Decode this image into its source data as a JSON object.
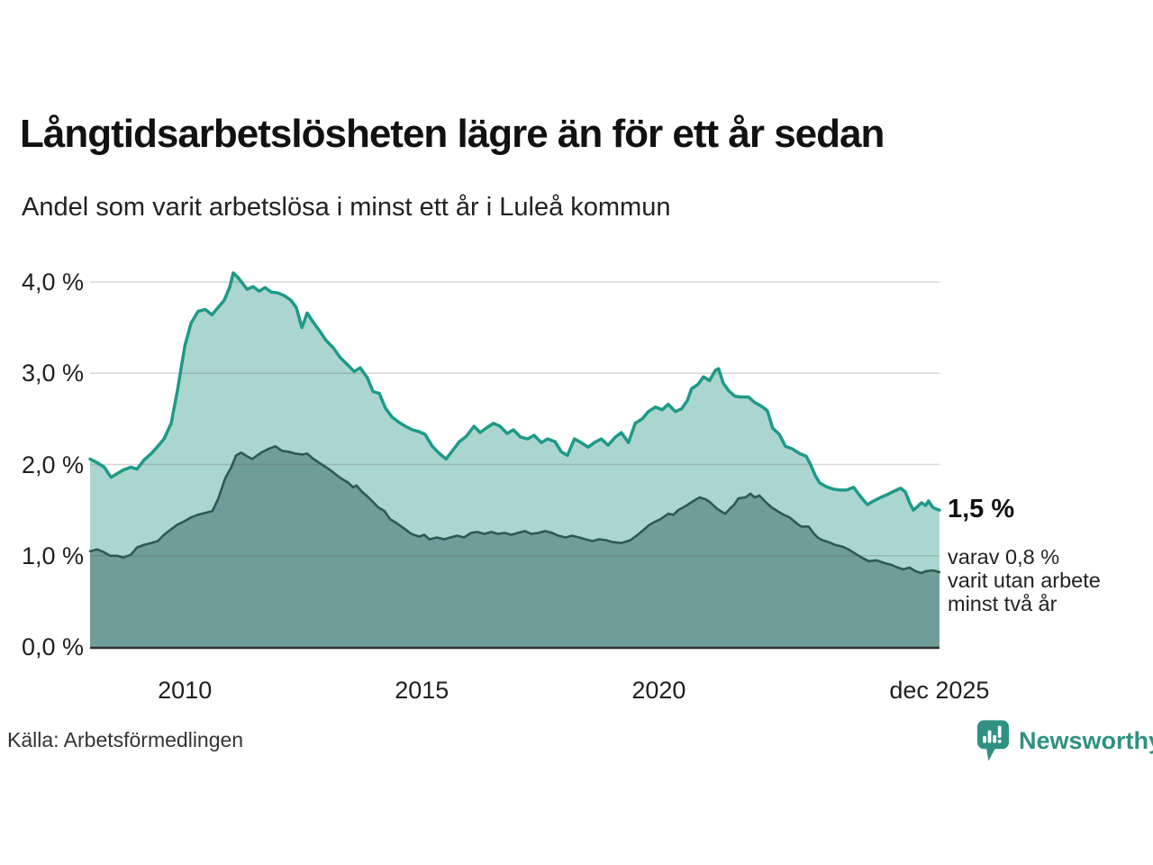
{
  "header": {
    "title": "Långtidsarbetslösheten lägre än för ett år sedan",
    "subtitle": "Andel som varit arbetslösa i minst ett år i Luleå kommun"
  },
  "footer": {
    "source": "Källa: Arbetsförmedlingen",
    "brand": "Newsworthy"
  },
  "colors": {
    "series1_line": "#1d9a87",
    "series1_fill": "#abd6cf",
    "series2_line": "#2d5a52",
    "series2_fill": "#6f9d99",
    "gridline": "#d7d7d7",
    "axis_line": "#2f2f2f",
    "brand_teal": "#2f9181",
    "text": "#1a1a1a"
  },
  "chart_data": {
    "type": "area",
    "title": "Långtidsarbetslösheten lägre än för ett år sedan",
    "subtitle": "Andel som varit arbetslösa i minst ett år i Luleå kommun",
    "legend": "none",
    "grid": "horizontal",
    "unit": "%",
    "x_axis": {
      "domain": [
        2008.0,
        2025.92
      ],
      "ticks": [
        {
          "label": "2010",
          "year": 2010
        },
        {
          "label": "2015",
          "year": 2015
        },
        {
          "label": "2020",
          "year": 2020
        },
        {
          "label": "dec 2025",
          "year": 2025.92
        }
      ]
    },
    "y_axis": {
      "range": [
        0,
        4.35
      ],
      "gridlines": [
        1,
        2,
        3,
        4
      ],
      "ticks": [
        {
          "label": "0,0 %",
          "value": 0
        },
        {
          "label": "1,0 %",
          "value": 1
        },
        {
          "label": "2,0 %",
          "value": 2
        },
        {
          "label": "3,0 %",
          "value": 3
        },
        {
          "label": "4,0 %",
          "value": 4
        }
      ]
    },
    "annotation": {
      "value": "1,5 %",
      "note_lines": [
        "varav 0,8 %",
        "varit utan arbete",
        "minst två år"
      ]
    },
    "series": [
      {
        "name": "Andel arbetslösa minst ett år",
        "latest_value": 1.5,
        "line_color": "#1d9a87",
        "fill_color": "#abd6cf",
        "points": [
          [
            2008.0,
            2.06
          ],
          [
            2008.15,
            2.02
          ],
          [
            2008.3,
            1.97
          ],
          [
            2008.44,
            1.86
          ],
          [
            2008.57,
            1.9
          ],
          [
            2008.7,
            1.94
          ],
          [
            2008.86,
            1.97
          ],
          [
            2008.99,
            1.95
          ],
          [
            2009.14,
            2.05
          ],
          [
            2009.29,
            2.12
          ],
          [
            2009.43,
            2.2
          ],
          [
            2009.56,
            2.28
          ],
          [
            2009.71,
            2.45
          ],
          [
            2009.84,
            2.8
          ],
          [
            2010.0,
            3.3
          ],
          [
            2010.13,
            3.55
          ],
          [
            2010.28,
            3.68
          ],
          [
            2010.43,
            3.7
          ],
          [
            2010.57,
            3.64
          ],
          [
            2010.7,
            3.72
          ],
          [
            2010.83,
            3.8
          ],
          [
            2010.95,
            3.95
          ],
          [
            2011.02,
            4.1
          ],
          [
            2011.12,
            4.05
          ],
          [
            2011.21,
            3.99
          ],
          [
            2011.31,
            3.92
          ],
          [
            2011.44,
            3.95
          ],
          [
            2011.57,
            3.9
          ],
          [
            2011.69,
            3.94
          ],
          [
            2011.82,
            3.89
          ],
          [
            2011.97,
            3.88
          ],
          [
            2012.1,
            3.85
          ],
          [
            2012.24,
            3.8
          ],
          [
            2012.35,
            3.72
          ],
          [
            2012.47,
            3.5
          ],
          [
            2012.58,
            3.66
          ],
          [
            2012.71,
            3.56
          ],
          [
            2012.85,
            3.46
          ],
          [
            2012.98,
            3.36
          ],
          [
            2013.13,
            3.28
          ],
          [
            2013.28,
            3.17
          ],
          [
            2013.42,
            3.1
          ],
          [
            2013.57,
            3.02
          ],
          [
            2013.7,
            3.06
          ],
          [
            2013.85,
            2.95
          ],
          [
            2013.97,
            2.8
          ],
          [
            2014.1,
            2.78
          ],
          [
            2014.23,
            2.62
          ],
          [
            2014.37,
            2.52
          ],
          [
            2014.52,
            2.46
          ],
          [
            2014.65,
            2.42
          ],
          [
            2014.8,
            2.38
          ],
          [
            2014.94,
            2.36
          ],
          [
            2015.07,
            2.33
          ],
          [
            2015.22,
            2.2
          ],
          [
            2015.37,
            2.12
          ],
          [
            2015.51,
            2.06
          ],
          [
            2015.66,
            2.16
          ],
          [
            2015.79,
            2.25
          ],
          [
            2015.94,
            2.31
          ],
          [
            2016.1,
            2.42
          ],
          [
            2016.23,
            2.35
          ],
          [
            2016.36,
            2.4
          ],
          [
            2016.51,
            2.45
          ],
          [
            2016.65,
            2.42
          ],
          [
            2016.8,
            2.34
          ],
          [
            2016.93,
            2.38
          ],
          [
            2017.08,
            2.3
          ],
          [
            2017.23,
            2.28
          ],
          [
            2017.37,
            2.32
          ],
          [
            2017.52,
            2.24
          ],
          [
            2017.65,
            2.28
          ],
          [
            2017.81,
            2.25
          ],
          [
            2017.94,
            2.14
          ],
          [
            2018.07,
            2.1
          ],
          [
            2018.22,
            2.28
          ],
          [
            2018.36,
            2.24
          ],
          [
            2018.51,
            2.19
          ],
          [
            2018.64,
            2.24
          ],
          [
            2018.79,
            2.28
          ],
          [
            2018.93,
            2.21
          ],
          [
            2019.08,
            2.3
          ],
          [
            2019.21,
            2.35
          ],
          [
            2019.36,
            2.24
          ],
          [
            2019.5,
            2.45
          ],
          [
            2019.65,
            2.5
          ],
          [
            2019.78,
            2.58
          ],
          [
            2019.93,
            2.63
          ],
          [
            2020.07,
            2.6
          ],
          [
            2020.2,
            2.66
          ],
          [
            2020.35,
            2.58
          ],
          [
            2020.48,
            2.61
          ],
          [
            2020.6,
            2.7
          ],
          [
            2020.69,
            2.83
          ],
          [
            2020.83,
            2.88
          ],
          [
            2020.94,
            2.96
          ],
          [
            2021.07,
            2.92
          ],
          [
            2021.19,
            3.03
          ],
          [
            2021.26,
            3.05
          ],
          [
            2021.36,
            2.89
          ],
          [
            2021.47,
            2.81
          ],
          [
            2021.6,
            2.75
          ],
          [
            2021.74,
            2.74
          ],
          [
            2021.89,
            2.74
          ],
          [
            2022.02,
            2.68
          ],
          [
            2022.16,
            2.64
          ],
          [
            2022.29,
            2.59
          ],
          [
            2022.4,
            2.4
          ],
          [
            2022.54,
            2.33
          ],
          [
            2022.67,
            2.2
          ],
          [
            2022.82,
            2.17
          ],
          [
            2022.97,
            2.12
          ],
          [
            2023.11,
            2.09
          ],
          [
            2023.2,
            2.0
          ],
          [
            2023.3,
            1.88
          ],
          [
            2023.39,
            1.8
          ],
          [
            2023.52,
            1.76
          ],
          [
            2023.68,
            1.73
          ],
          [
            2023.83,
            1.72
          ],
          [
            2023.96,
            1.72
          ],
          [
            2024.11,
            1.75
          ],
          [
            2024.21,
            1.68
          ],
          [
            2024.3,
            1.62
          ],
          [
            2024.4,
            1.56
          ],
          [
            2024.53,
            1.6
          ],
          [
            2024.68,
            1.64
          ],
          [
            2024.82,
            1.67
          ],
          [
            2024.97,
            1.71
          ],
          [
            2025.1,
            1.74
          ],
          [
            2025.2,
            1.7
          ],
          [
            2025.29,
            1.58
          ],
          [
            2025.37,
            1.5
          ],
          [
            2025.44,
            1.53
          ],
          [
            2025.54,
            1.58
          ],
          [
            2025.63,
            1.55
          ],
          [
            2025.69,
            1.6
          ],
          [
            2025.78,
            1.53
          ],
          [
            2025.86,
            1.51
          ],
          [
            2025.92,
            1.5
          ]
        ]
      },
      {
        "name": "Varav utan arbete minst två år",
        "latest_value": 0.8,
        "line_color": "#2d5a52",
        "fill_color": "#6f9d99",
        "points": [
          [
            2008.0,
            1.05
          ],
          [
            2008.15,
            1.07
          ],
          [
            2008.29,
            1.04
          ],
          [
            2008.42,
            1.0
          ],
          [
            2008.57,
            1.0
          ],
          [
            2008.7,
            0.98
          ],
          [
            2008.86,
            1.01
          ],
          [
            2008.99,
            1.09
          ],
          [
            2009.14,
            1.12
          ],
          [
            2009.29,
            1.14
          ],
          [
            2009.43,
            1.16
          ],
          [
            2009.56,
            1.23
          ],
          [
            2009.71,
            1.29
          ],
          [
            2009.84,
            1.34
          ],
          [
            2010.0,
            1.38
          ],
          [
            2010.13,
            1.42
          ],
          [
            2010.28,
            1.45
          ],
          [
            2010.43,
            1.47
          ],
          [
            2010.58,
            1.49
          ],
          [
            2010.7,
            1.62
          ],
          [
            2010.85,
            1.85
          ],
          [
            2010.98,
            1.97
          ],
          [
            2011.08,
            2.1
          ],
          [
            2011.19,
            2.13
          ],
          [
            2011.31,
            2.09
          ],
          [
            2011.42,
            2.06
          ],
          [
            2011.61,
            2.13
          ],
          [
            2011.76,
            2.17
          ],
          [
            2011.91,
            2.2
          ],
          [
            2012.05,
            2.15
          ],
          [
            2012.18,
            2.14
          ],
          [
            2012.33,
            2.12
          ],
          [
            2012.48,
            2.11
          ],
          [
            2012.58,
            2.12
          ],
          [
            2012.69,
            2.07
          ],
          [
            2012.83,
            2.02
          ],
          [
            2012.98,
            1.97
          ],
          [
            2013.09,
            1.93
          ],
          [
            2013.21,
            1.88
          ],
          [
            2013.32,
            1.84
          ],
          [
            2013.45,
            1.8
          ],
          [
            2013.55,
            1.75
          ],
          [
            2013.62,
            1.77
          ],
          [
            2013.74,
            1.7
          ],
          [
            2013.85,
            1.65
          ],
          [
            2013.95,
            1.6
          ],
          [
            2014.08,
            1.53
          ],
          [
            2014.21,
            1.49
          ],
          [
            2014.33,
            1.4
          ],
          [
            2014.46,
            1.36
          ],
          [
            2014.65,
            1.29
          ],
          [
            2014.78,
            1.24
          ],
          [
            2014.94,
            1.21
          ],
          [
            2015.05,
            1.23
          ],
          [
            2015.16,
            1.18
          ],
          [
            2015.32,
            1.2
          ],
          [
            2015.47,
            1.18
          ],
          [
            2015.6,
            1.2
          ],
          [
            2015.75,
            1.22
          ],
          [
            2015.89,
            1.2
          ],
          [
            2016.04,
            1.25
          ],
          [
            2016.17,
            1.26
          ],
          [
            2016.32,
            1.24
          ],
          [
            2016.46,
            1.26
          ],
          [
            2016.61,
            1.24
          ],
          [
            2016.74,
            1.25
          ],
          [
            2016.89,
            1.23
          ],
          [
            2017.03,
            1.25
          ],
          [
            2017.18,
            1.27
          ],
          [
            2017.31,
            1.24
          ],
          [
            2017.46,
            1.25
          ],
          [
            2017.6,
            1.27
          ],
          [
            2017.75,
            1.25
          ],
          [
            2017.88,
            1.22
          ],
          [
            2018.03,
            1.2
          ],
          [
            2018.17,
            1.22
          ],
          [
            2018.32,
            1.2
          ],
          [
            2018.45,
            1.18
          ],
          [
            2018.6,
            1.16
          ],
          [
            2018.74,
            1.18
          ],
          [
            2018.89,
            1.17
          ],
          [
            2019.02,
            1.15
          ],
          [
            2019.21,
            1.14
          ],
          [
            2019.4,
            1.17
          ],
          [
            2019.53,
            1.22
          ],
          [
            2019.65,
            1.27
          ],
          [
            2019.78,
            1.33
          ],
          [
            2019.91,
            1.37
          ],
          [
            2020.03,
            1.4
          ],
          [
            2020.2,
            1.46
          ],
          [
            2020.31,
            1.45
          ],
          [
            2020.41,
            1.5
          ],
          [
            2020.58,
            1.55
          ],
          [
            2020.73,
            1.6
          ],
          [
            2020.86,
            1.64
          ],
          [
            2020.98,
            1.62
          ],
          [
            2021.07,
            1.59
          ],
          [
            2021.24,
            1.51
          ],
          [
            2021.4,
            1.46
          ],
          [
            2021.49,
            1.51
          ],
          [
            2021.59,
            1.56
          ],
          [
            2021.68,
            1.63
          ],
          [
            2021.83,
            1.64
          ],
          [
            2021.93,
            1.68
          ],
          [
            2022.02,
            1.64
          ],
          [
            2022.12,
            1.66
          ],
          [
            2022.25,
            1.59
          ],
          [
            2022.38,
            1.53
          ],
          [
            2022.5,
            1.49
          ],
          [
            2022.63,
            1.45
          ],
          [
            2022.76,
            1.42
          ],
          [
            2022.92,
            1.35
          ],
          [
            2023.01,
            1.32
          ],
          [
            2023.16,
            1.32
          ],
          [
            2023.26,
            1.25
          ],
          [
            2023.35,
            1.2
          ],
          [
            2023.45,
            1.17
          ],
          [
            2023.58,
            1.15
          ],
          [
            2023.71,
            1.12
          ],
          [
            2023.87,
            1.1
          ],
          [
            2024.0,
            1.07
          ],
          [
            2024.15,
            1.02
          ],
          [
            2024.28,
            0.98
          ],
          [
            2024.43,
            0.94
          ],
          [
            2024.59,
            0.95
          ],
          [
            2024.76,
            0.92
          ],
          [
            2024.91,
            0.9
          ],
          [
            2025.04,
            0.87
          ],
          [
            2025.16,
            0.85
          ],
          [
            2025.29,
            0.87
          ],
          [
            2025.42,
            0.83
          ],
          [
            2025.54,
            0.81
          ],
          [
            2025.63,
            0.83
          ],
          [
            2025.77,
            0.84
          ],
          [
            2025.86,
            0.83
          ],
          [
            2025.92,
            0.82
          ]
        ]
      }
    ]
  }
}
